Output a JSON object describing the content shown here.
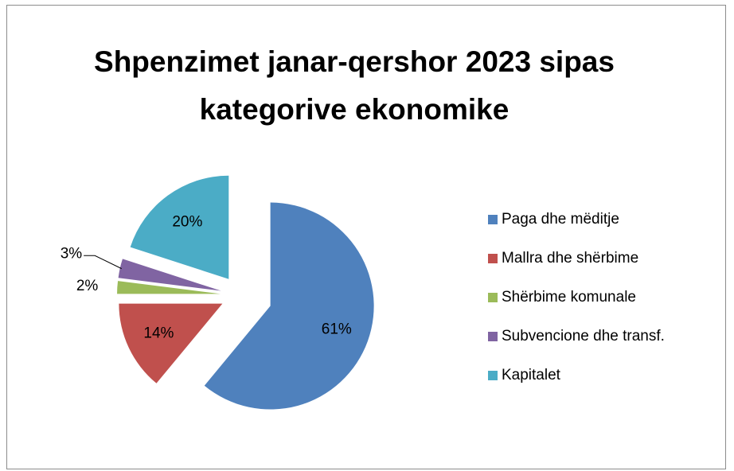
{
  "chart_data": {
    "type": "pie",
    "title": "Shpenzimet janar-qershor 2023 sipas kategorive ekonomike",
    "categories": [
      "Paga dhe mëditje",
      "Mallra dhe shërbime",
      "Shërbime komunale",
      "Subvencione dhe transf.",
      "Kapitalet"
    ],
    "values": [
      61,
      14,
      2,
      3,
      20
    ],
    "value_labels": [
      "61%",
      "14%",
      "2%",
      "3%",
      "20%"
    ],
    "colors": [
      "#4f81bd",
      "#c0504d",
      "#9bbb59",
      "#8064a2",
      "#4bacc6"
    ],
    "legend": "right"
  }
}
